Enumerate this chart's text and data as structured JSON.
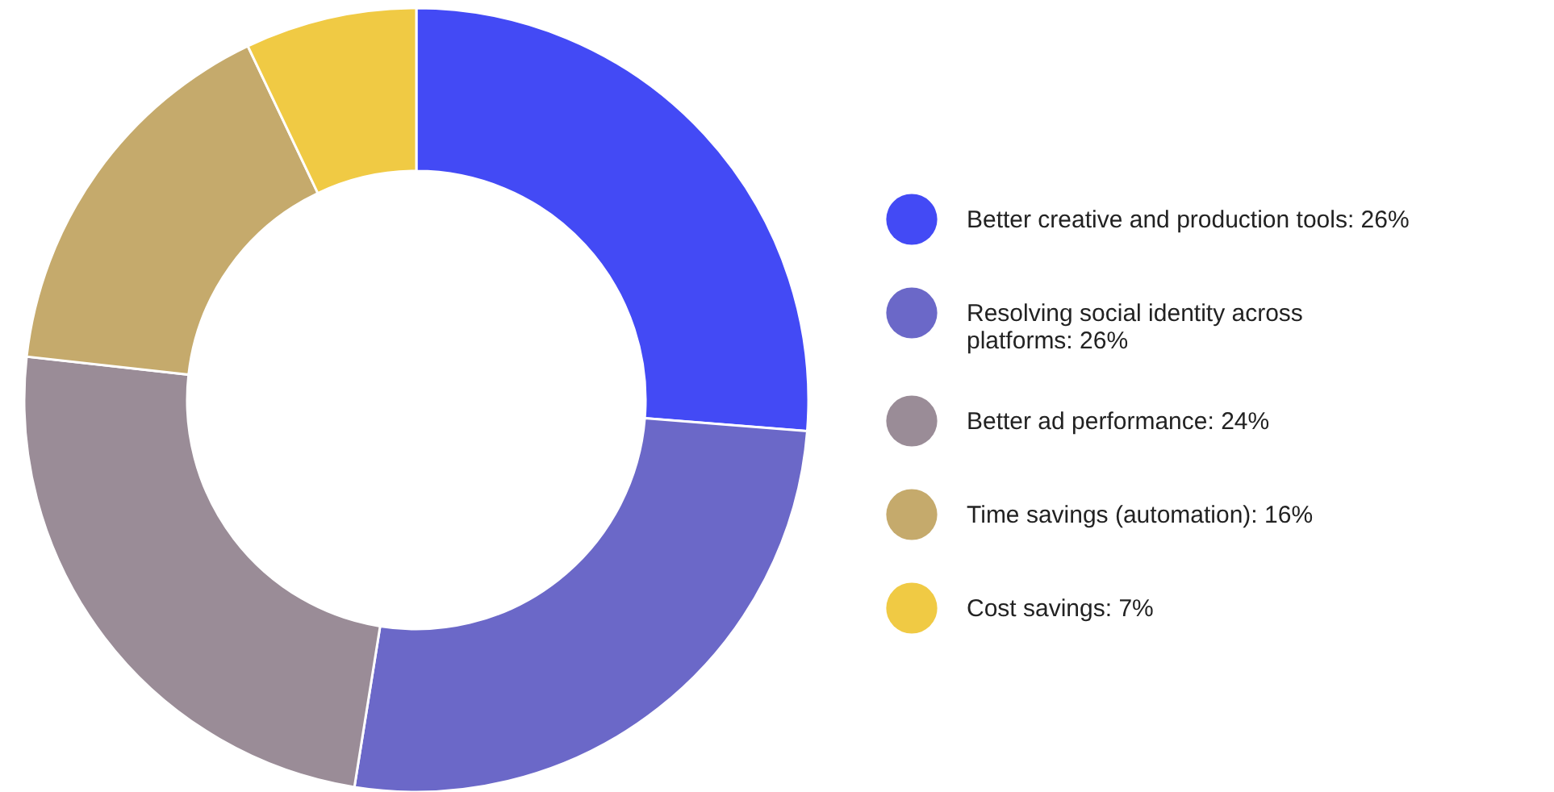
{
  "chart_data": {
    "type": "donut",
    "categories": [
      "Better creative and production tools",
      "Resolving social identity across platforms",
      "Better ad performance",
      "Time savings (automation)",
      "Cost savings"
    ],
    "values": [
      26,
      26,
      24,
      16,
      7
    ],
    "value_labels": [
      "26%",
      "26%",
      "24%",
      "16%",
      "7%"
    ],
    "colors": [
      "#434af5",
      "#6b68c8",
      "#9a8c97",
      "#c5aa6c",
      "#f0ca44"
    ],
    "legend": "right"
  }
}
